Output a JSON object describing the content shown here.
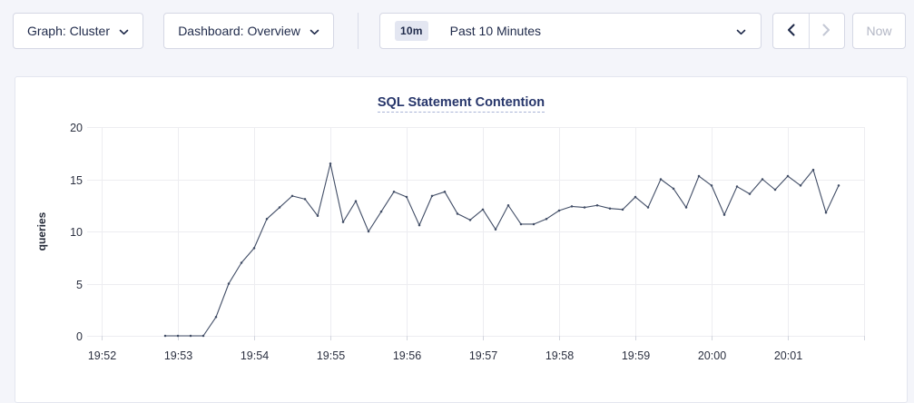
{
  "toolbar": {
    "graph_dropdown_label": "Graph: Cluster",
    "dashboard_dropdown_label": "Dashboard: Overview",
    "time_range_badge": "10m",
    "time_range_label": "Past 10 Minutes",
    "now_label": "Now",
    "icons": [
      "chevron-down-icon",
      "chevron-left-icon",
      "chevron-right-icon"
    ]
  },
  "colors": {
    "page_bg": "#f4f5fa",
    "accent_navy": "#1f2a4a",
    "title_navy": "#26356a",
    "series_line": "#414d66",
    "gridline": "#ededf1",
    "disabled_text": "#b3b7c5"
  },
  "chart_data": {
    "type": "line",
    "title": "SQL Statement Contention",
    "xlabel": "",
    "ylabel": "queries",
    "ylim": [
      0,
      20
    ],
    "yticks": [
      0,
      5,
      10,
      15,
      20
    ],
    "grid": "on",
    "legend": "none",
    "x_tick_labels": [
      "19:52",
      "19:53",
      "19:54",
      "19:55",
      "19:56",
      "19:57",
      "19:58",
      "19:59",
      "20:00",
      "20:01"
    ],
    "x_minutes_shown": 10,
    "x_start_seconds_after_1952": 50,
    "x_step_seconds": 10,
    "series": [
      {
        "name": "queries",
        "values": [
          0,
          0,
          0,
          0,
          1.8,
          5,
          7,
          8.4,
          11.2,
          12.3,
          13.4,
          13.1,
          11.5,
          16.5,
          10.9,
          12.9,
          10,
          11.9,
          13.8,
          13.3,
          10.6,
          13.4,
          13.8,
          11.7,
          11.1,
          12.1,
          10.2,
          12.5,
          10.7,
          10.7,
          11.2,
          12,
          12.4,
          12.3,
          12.5,
          12.2,
          12.1,
          13.3,
          12.3,
          15,
          14.1,
          12.3,
          15.3,
          14.4,
          11.6,
          14.3,
          13.6,
          15,
          14,
          15.3,
          14.4,
          15.9,
          11.8,
          14.4
        ]
      }
    ]
  }
}
